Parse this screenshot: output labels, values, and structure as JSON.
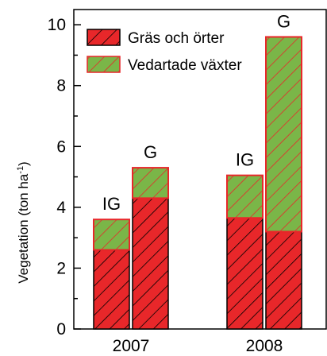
{
  "chart_data": {
    "type": "bar",
    "stacked": true,
    "ylabel": "Vegetation (ton ha",
    "ylabel_superscript": "-1",
    "ylim": [
      0,
      10.5
    ],
    "yticks": [
      0,
      2,
      4,
      6,
      8,
      10
    ],
    "year_labels": [
      "2007",
      "2008"
    ],
    "legend_position": "top-left",
    "series": [
      {
        "name": "Gräs och örter",
        "color": "#e8272a",
        "hatch": "black diagonal",
        "values": [
          2.6,
          4.3,
          3.65,
          3.2
        ]
      },
      {
        "name": "Vedartade växter",
        "color": "#7ab648",
        "hatch": "red diagonal",
        "values": [
          1.0,
          1.0,
          1.4,
          6.4
        ]
      }
    ],
    "bars": [
      {
        "year": "2007",
        "label": "IG"
      },
      {
        "year": "2007",
        "label": "G"
      },
      {
        "year": "2008",
        "label": "IG"
      },
      {
        "year": "2008",
        "label": "G"
      }
    ]
  }
}
